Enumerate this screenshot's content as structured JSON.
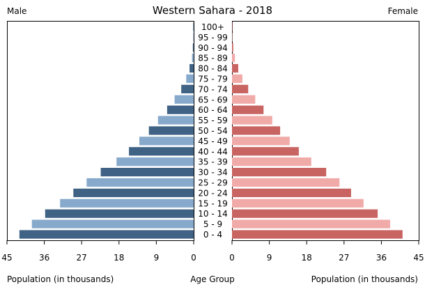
{
  "chart_data": {
    "type": "bar",
    "title": "Western Sahara - 2018",
    "left_label": "Male",
    "right_label": "Female",
    "xlabel_left": "Population (in thousands)",
    "xlabel_center": "Age Group",
    "xlabel_right": "Population (in thousands)",
    "xlim": [
      0,
      45
    ],
    "xticks": [
      0,
      9,
      18,
      27,
      36,
      45
    ],
    "categories": [
      "100+",
      "95 - 99",
      "90 - 94",
      "85 - 89",
      "80 - 84",
      "75 - 79",
      "70 - 74",
      "65 - 69",
      "60 - 64",
      "55 - 59",
      "50 - 54",
      "45 - 49",
      "40 - 44",
      "35 - 39",
      "30 - 34",
      "25 - 29",
      "20 - 24",
      "15 - 19",
      "10 - 14",
      "5 - 9",
      "0 - 4"
    ],
    "series": [
      {
        "name": "Male",
        "colors": [
          "#3f6285",
          "#87a9cc"
        ],
        "values": [
          0.1,
          0.1,
          0.2,
          0.4,
          1.0,
          1.8,
          3.0,
          4.6,
          6.4,
          8.6,
          10.8,
          13.1,
          15.6,
          18.6,
          22.4,
          25.8,
          29.0,
          32.2,
          35.8,
          39.0,
          42.0
        ]
      },
      {
        "name": "Female",
        "colors": [
          "#c86461",
          "#f0aaa8"
        ],
        "values": [
          0.1,
          0.1,
          0.3,
          0.7,
          1.5,
          2.5,
          3.9,
          5.6,
          7.6,
          9.7,
          11.6,
          13.9,
          16.1,
          19.1,
          22.7,
          25.9,
          28.7,
          31.7,
          35.1,
          38.1,
          41.1
        ]
      }
    ]
  }
}
